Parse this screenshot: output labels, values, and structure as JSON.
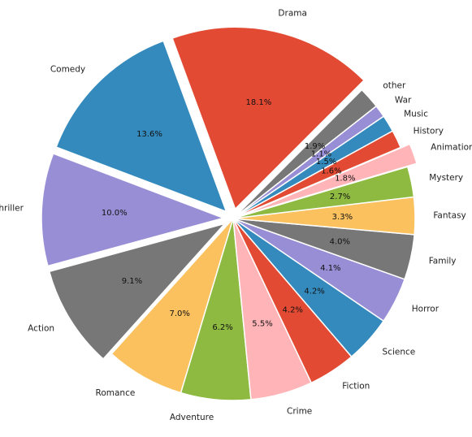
{
  "chart_data": {
    "type": "pie",
    "slices": [
      {
        "label": "Drama",
        "value": 18.1,
        "pct_text": "18.1%",
        "color": "#E24A33",
        "explode": true
      },
      {
        "label": "Comedy",
        "value": 13.6,
        "pct_text": "13.6%",
        "color": "#348ABD",
        "explode": true
      },
      {
        "label": "Thriller",
        "value": 10.0,
        "pct_text": "10.0%",
        "color": "#988ED5",
        "explode": true
      },
      {
        "label": "Action",
        "value": 9.1,
        "pct_text": "9.1%",
        "color": "#777777",
        "explode": true
      },
      {
        "label": "Romance",
        "value": 7.0,
        "pct_text": "7.0%",
        "color": "#FBC15E",
        "explode": false
      },
      {
        "label": "Adventure",
        "value": 6.2,
        "pct_text": "6.2%",
        "color": "#8EBA42",
        "explode": false
      },
      {
        "label": "Crime",
        "value": 5.5,
        "pct_text": "5.5%",
        "color": "#FFB5B8",
        "explode": false
      },
      {
        "label": "Fiction",
        "value": 4.2,
        "pct_text": "4.2%",
        "color": "#E24A33",
        "explode": false
      },
      {
        "label": "Science",
        "value": 4.2,
        "pct_text": "4.2%",
        "color": "#348ABD",
        "explode": false
      },
      {
        "label": "Horror",
        "value": 4.1,
        "pct_text": "4.1%",
        "color": "#988ED5",
        "explode": false
      },
      {
        "label": "Family",
        "value": 4.0,
        "pct_text": "4.0%",
        "color": "#777777",
        "explode": false
      },
      {
        "label": "Fantasy",
        "value": 3.3,
        "pct_text": "3.3%",
        "color": "#FBC15E",
        "explode": false
      },
      {
        "label": "Mystery",
        "value": 2.7,
        "pct_text": "2.7%",
        "color": "#8EBA42",
        "explode": false
      },
      {
        "label": "Animation",
        "value": 1.8,
        "pct_text": "1.8%",
        "color": "#FFB5B8",
        "explode": true
      },
      {
        "label": "History",
        "value": 1.6,
        "pct_text": "1.6%",
        "color": "#E24A33",
        "explode": false
      },
      {
        "label": "Music",
        "value": 1.5,
        "pct_text": "1.5%",
        "color": "#348ABD",
        "explode": false
      },
      {
        "label": "War",
        "value": 1.1,
        "pct_text": "1.1%",
        "color": "#988ED5",
        "explode": false
      },
      {
        "label": "other",
        "value": 1.9,
        "pct_text": "1.9%",
        "color": "#777777",
        "explode": false
      }
    ],
    "start_angle_deg": 45,
    "direction": "counterclockwise",
    "legend": "none",
    "title": ""
  }
}
